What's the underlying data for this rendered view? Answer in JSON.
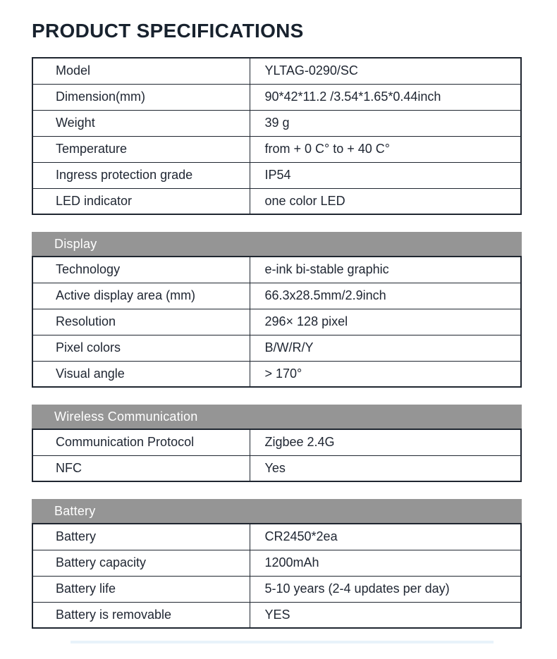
{
  "title": "PRODUCT SPECIFICATIONS",
  "colors": {
    "section_header_bg": "#959595",
    "section_header_text": "#ffffff",
    "border": "#1f2630",
    "title_text": "#18222e",
    "body_text": "#202733"
  },
  "sections": [
    {
      "header": null,
      "rows": [
        {
          "label": "Model",
          "value": "YLTAG-0290/SC"
        },
        {
          "label": "Dimension(mm)",
          "value": "90*42*11.2 /3.54*1.65*0.44inch"
        },
        {
          "label": "Weight",
          "value": "39 g"
        },
        {
          "label": "Temperature",
          "value": "from + 0 C° to + 40 C°"
        },
        {
          "label": "Ingress protection grade",
          "value": "IP54"
        },
        {
          "label": "LED indicator",
          "value": "one color LED"
        }
      ]
    },
    {
      "header": "Display",
      "rows": [
        {
          "label": "Technology",
          "value": "e-ink bi-stable graphic"
        },
        {
          "label": "Active display area (mm)",
          "value": "66.3x28.5mm/2.9inch"
        },
        {
          "label": "Resolution",
          "value": "296× 128 pixel"
        },
        {
          "label": "Pixel colors",
          "value": "B/W/R/Y"
        },
        {
          "label": "Visual angle",
          "value": "> 170°"
        }
      ]
    },
    {
      "header": "Wireless Communication",
      "rows": [
        {
          "label": "Communication Protocol",
          "value": "Zigbee 2.4G"
        },
        {
          "label": "NFC",
          "value": "Yes"
        }
      ]
    },
    {
      "header": "Battery",
      "rows": [
        {
          "label": "Battery",
          "value": "CR2450*2ea"
        },
        {
          "label": "Battery capacity",
          "value": "1200mAh"
        },
        {
          "label": "Battery life",
          "value": "5-10 years (2-4 updates per day)"
        },
        {
          "label": "Battery is removable",
          "value": "YES"
        }
      ]
    }
  ]
}
